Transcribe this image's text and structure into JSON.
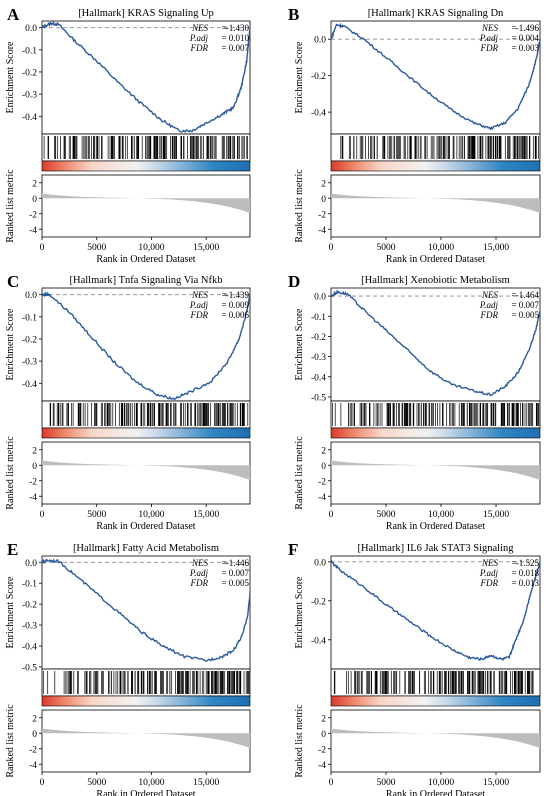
{
  "figure": {
    "colors": {
      "curve": "#2a5a9c",
      "hits": "#000000",
      "metric_fill": "#bdbdbd",
      "bar_stops": [
        "#d93a2a",
        "#ef8f73",
        "#f8d6c8",
        "#f2f2f2",
        "#c8d9ea",
        "#7fb0d7",
        "#2f86c2",
        "#1f6fb3"
      ],
      "dashed": "#8a8a8a"
    },
    "common": {
      "es_ylabel": "Enrichment Score",
      "metric_ylabel": "Ranked list metric",
      "xlabel": "Rank in Ordered Dataset",
      "x_ticks": [
        "0",
        "5000",
        "10,000",
        "15,000"
      ],
      "metric_ticks": [
        "2",
        "0",
        "-2",
        "-4"
      ]
    }
  },
  "chart_data": [
    {
      "type": "line",
      "panel": "A",
      "title": "[Hallmark] KRAS Signaling Up",
      "stats": {
        "nes": "-1.430",
        "padj": "0.010",
        "fdr": "0.007"
      },
      "labels": {
        "nes": "NES",
        "padj": "P.adj",
        "fdr": "FDR"
      },
      "yticks": [
        "0.0",
        "-0.1",
        "-0.2",
        "-0.3",
        "-0.4"
      ],
      "ylim": [
        -0.48,
        0.03
      ],
      "xlim": [
        0,
        19000
      ],
      "curve": [
        [
          0,
          0.0
        ],
        [
          800,
          0.02
        ],
        [
          1500,
          0.015
        ],
        [
          3000,
          -0.06
        ],
        [
          5000,
          -0.15
        ],
        [
          7000,
          -0.25
        ],
        [
          9000,
          -0.34
        ],
        [
          11000,
          -0.42
        ],
        [
          12500,
          -0.465
        ],
        [
          13700,
          -0.465
        ],
        [
          15000,
          -0.43
        ],
        [
          16500,
          -0.39
        ],
        [
          17500,
          -0.36
        ],
        [
          18200,
          -0.27
        ],
        [
          18700,
          -0.15
        ],
        [
          19000,
          0.0
        ]
      ]
    },
    {
      "type": "line",
      "panel": "B",
      "title": "[Hallmark] KRAS Signaling Dn",
      "stats": {
        "nes": "-1.496",
        "padj": "0.004",
        "fdr": "0.003"
      },
      "labels": {
        "nes": "NES",
        "padj": "P.adj",
        "fdr": "FDR"
      },
      "yticks": [
        "0.0",
        "-0.2",
        "-0.4"
      ],
      "ylim": [
        -0.52,
        0.1
      ],
      "xlim": [
        0,
        19000
      ],
      "curve": [
        [
          0,
          0.0
        ],
        [
          500,
          0.08
        ],
        [
          1200,
          0.07
        ],
        [
          3000,
          0.0
        ],
        [
          5000,
          -0.1
        ],
        [
          7000,
          -0.2
        ],
        [
          9000,
          -0.3
        ],
        [
          11000,
          -0.39
        ],
        [
          13000,
          -0.46
        ],
        [
          14500,
          -0.49
        ],
        [
          15800,
          -0.46
        ],
        [
          17000,
          -0.38
        ],
        [
          18000,
          -0.25
        ],
        [
          18700,
          -0.1
        ],
        [
          19000,
          0.0
        ]
      ]
    },
    {
      "type": "line",
      "panel": "C",
      "title": "[Hallmark] Tnfa Signaling Via Nfkb",
      "stats": {
        "nes": "-1.439",
        "padj": "0.009",
        "fdr": "0.006"
      },
      "labels": {
        "nes": "NES",
        "padj": "P.adj",
        "fdr": "FDR"
      },
      "yticks": [
        "0.0",
        "-0.1",
        "-0.2",
        "-0.3",
        "-0.4"
      ],
      "ylim": [
        -0.48,
        0.03
      ],
      "xlim": [
        0,
        19000
      ],
      "curve": [
        [
          0,
          0.0
        ],
        [
          700,
          0.0
        ],
        [
          2500,
          -0.08
        ],
        [
          4500,
          -0.19
        ],
        [
          6500,
          -0.3
        ],
        [
          8500,
          -0.39
        ],
        [
          10500,
          -0.45
        ],
        [
          12000,
          -0.47
        ],
        [
          13500,
          -0.44
        ],
        [
          15500,
          -0.39
        ],
        [
          17000,
          -0.3
        ],
        [
          18000,
          -0.2
        ],
        [
          18700,
          -0.08
        ],
        [
          19000,
          0.0
        ]
      ]
    },
    {
      "type": "line",
      "panel": "D",
      "title": "[Hallmark] Xenobiotic Metabolism",
      "stats": {
        "nes": "-1.464",
        "padj": "0.007",
        "fdr": "0.005"
      },
      "labels": {
        "nes": "NES",
        "padj": "P.adj",
        "fdr": "FDR"
      },
      "yticks": [
        "0.0",
        "-0.1",
        "-0.2",
        "-0.3",
        "-0.4",
        "-0.5"
      ],
      "ylim": [
        -0.52,
        0.04
      ],
      "xlim": [
        0,
        19000
      ],
      "curve": [
        [
          0,
          0.0
        ],
        [
          600,
          0.02
        ],
        [
          1500,
          0.01
        ],
        [
          3000,
          -0.07
        ],
        [
          5000,
          -0.17
        ],
        [
          7000,
          -0.27
        ],
        [
          9000,
          -0.37
        ],
        [
          11000,
          -0.44
        ],
        [
          13000,
          -0.47
        ],
        [
          14500,
          -0.49
        ],
        [
          15800,
          -0.45
        ],
        [
          17000,
          -0.38
        ],
        [
          18000,
          -0.27
        ],
        [
          18700,
          -0.15
        ],
        [
          19000,
          -0.07
        ]
      ]
    },
    {
      "type": "line",
      "panel": "E",
      "title": "[Hallmark] Fatty Acid Metabolism",
      "stats": {
        "nes": "-1.446",
        "padj": "0.007",
        "fdr": "0.005"
      },
      "labels": {
        "nes": "NES",
        "padj": "P.adj",
        "fdr": "FDR"
      },
      "yticks": [
        "0.0",
        "-0.1",
        "-0.2",
        "-0.3",
        "-0.4",
        "-0.5"
      ],
      "ylim": [
        -0.51,
        0.03
      ],
      "xlim": [
        0,
        19000
      ],
      "curve": [
        [
          0,
          0.0
        ],
        [
          500,
          0.01
        ],
        [
          1500,
          0.005
        ],
        [
          3000,
          -0.06
        ],
        [
          5000,
          -0.15
        ],
        [
          7000,
          -0.24
        ],
        [
          9000,
          -0.33
        ],
        [
          11000,
          -0.4
        ],
        [
          13000,
          -0.45
        ],
        [
          15000,
          -0.47
        ],
        [
          16500,
          -0.45
        ],
        [
          17500,
          -0.42
        ],
        [
          18300,
          -0.35
        ],
        [
          18800,
          -0.25
        ],
        [
          19000,
          -0.15
        ]
      ]
    },
    {
      "type": "line",
      "panel": "F",
      "title": "[Hallmark] IL6 Jak STAT3 Signaling",
      "stats": {
        "nes": "-1.525",
        "padj": "0.018",
        "fdr": "0.013"
      },
      "labels": {
        "nes": "NES",
        "padj": "P.adj",
        "fdr": "FDR"
      },
      "yticks": [
        "0.0",
        "-0.2",
        "-0.4"
      ],
      "ylim": [
        -0.55,
        0.03
      ],
      "xlim": [
        0,
        19000
      ],
      "curve": [
        [
          0,
          0.0
        ],
        [
          1000,
          -0.05
        ],
        [
          3000,
          -0.13
        ],
        [
          5000,
          -0.22
        ],
        [
          7000,
          -0.3
        ],
        [
          9000,
          -0.38
        ],
        [
          11000,
          -0.45
        ],
        [
          12500,
          -0.49
        ],
        [
          13700,
          -0.5
        ],
        [
          14500,
          -0.48
        ],
        [
          15500,
          -0.5
        ],
        [
          16200,
          -0.49
        ],
        [
          16800,
          -0.4
        ],
        [
          17500,
          -0.3
        ],
        [
          18200,
          -0.15
        ],
        [
          18700,
          -0.06
        ],
        [
          19000,
          0.0
        ]
      ]
    }
  ]
}
